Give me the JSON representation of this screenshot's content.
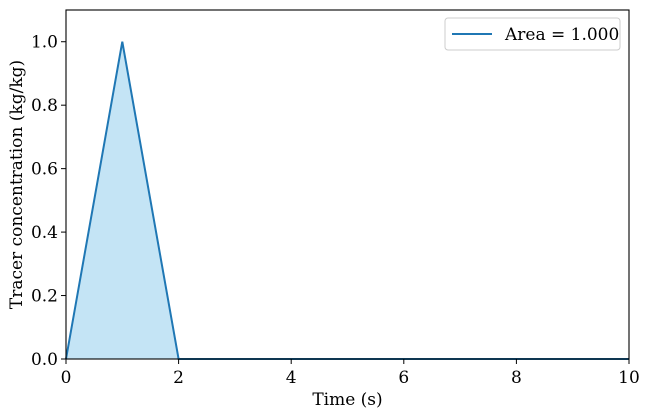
{
  "chart_data": {
    "type": "area",
    "title": "",
    "xlabel": "Time (s)",
    "ylabel": "Tracer concentration (kg/kg)",
    "xlim": [
      0,
      10
    ],
    "ylim": [
      0,
      1.1
    ],
    "x_ticks": [
      "0",
      "2",
      "4",
      "6",
      "8",
      "10"
    ],
    "y_ticks": [
      "0.0",
      "0.2",
      "0.4",
      "0.6",
      "0.8",
      "1.0"
    ],
    "grid": false,
    "legend_position": "top-right",
    "series": [
      {
        "name": "Area = 1.000",
        "color": "#1f77b4",
        "fill_color": "#c4e4f5",
        "x": [
          0,
          1,
          2,
          10
        ],
        "y": [
          0,
          1.0,
          0,
          0
        ]
      }
    ]
  }
}
